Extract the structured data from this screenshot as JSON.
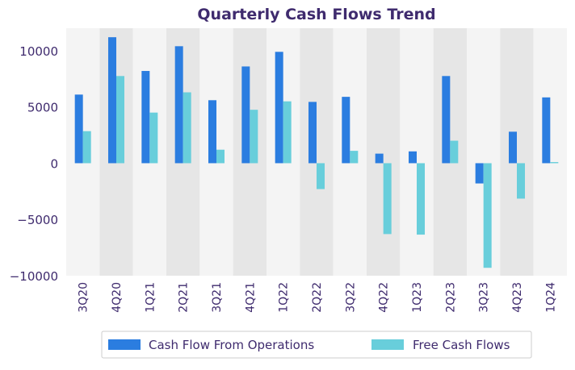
{
  "chart_data": {
    "type": "bar",
    "title": "Quarterly Cash Flows Trend",
    "xlabel": "",
    "ylabel": "",
    "categories": [
      "3Q20",
      "4Q20",
      "1Q21",
      "2Q21",
      "3Q21",
      "4Q21",
      "1Q22",
      "2Q22",
      "3Q22",
      "4Q22",
      "1Q23",
      "2Q23",
      "3Q23",
      "4Q23",
      "1Q24"
    ],
    "series": [
      {
        "name": "Cash Flow From Operations",
        "color": "#2b7de0",
        "values": [
          6100,
          11200,
          8200,
          10400,
          5600,
          8600,
          9900,
          5450,
          5900,
          850,
          1050,
          7750,
          -1800,
          2800,
          5850
        ]
      },
      {
        "name": "Free Cash Flows",
        "color": "#68cedb",
        "values": [
          2850,
          7750,
          4500,
          6300,
          1200,
          4750,
          5500,
          -2300,
          1100,
          -6300,
          -6350,
          2000,
          -9300,
          -3150,
          100
        ]
      }
    ],
    "ylim": [
      -10000,
      12000
    ],
    "yticks": [
      -10000,
      -5000,
      0,
      5000,
      10000
    ],
    "grid": false,
    "band_colors": [
      "#f4f4f4",
      "#e6e6e6"
    ],
    "legend_position": "bottom-center",
    "title_color": "#3f2b6e",
    "text_color": "#3f2b6e"
  }
}
